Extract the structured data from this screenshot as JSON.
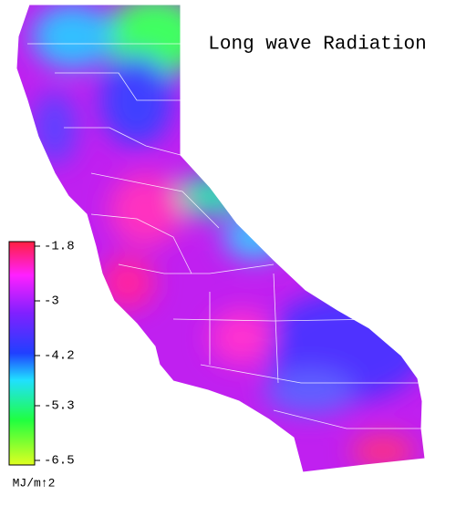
{
  "title": "Long wave Radiation",
  "colorbar": {
    "ticks": [
      -1.8,
      -3.0,
      -4.2,
      -5.3,
      -6.5
    ],
    "lim": [
      -1.8,
      -6.5
    ],
    "unit": "MJ/m↑2"
  }
}
